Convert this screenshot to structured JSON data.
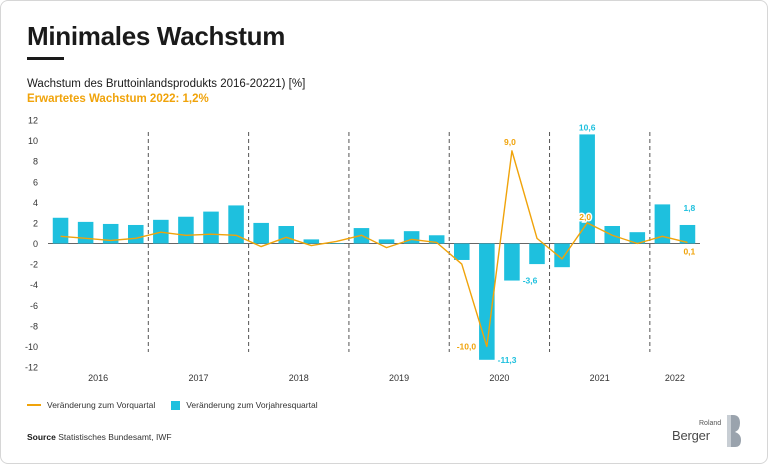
{
  "header": {
    "title": "Minimales Wachstum",
    "subtitle": "Wachstum des Bruttoinlandsprodukts 2016-20221) [%]",
    "subtitle2": "Erwartetes Wachstum 2022: 1,2%"
  },
  "chart_data": {
    "type": "bar",
    "title": "Wachstum des Bruttoinlandsprodukts 2016-20221) [%]",
    "ylim": [
      -12,
      12
    ],
    "yticks": [
      12,
      10,
      8,
      6,
      4,
      2,
      0,
      -2,
      -4,
      -6,
      -8,
      -10,
      -12
    ],
    "year_labels": [
      "2016",
      "2017",
      "2018",
      "2019",
      "2020",
      "2021",
      "2022"
    ],
    "quarters_per_year": [
      4,
      4,
      4,
      4,
      4,
      4,
      2
    ],
    "series": [
      {
        "name": "Veränderung zum Vorjahresquartal",
        "type": "bar",
        "values": [
          2.5,
          2.1,
          1.9,
          1.8,
          2.3,
          2.6,
          3.1,
          3.7,
          2.0,
          1.7,
          0.4,
          0.0,
          1.5,
          0.4,
          1.2,
          0.8,
          -1.6,
          -11.3,
          -3.6,
          -2.0,
          -2.3,
          10.6,
          1.7,
          1.1,
          3.8,
          1.8
        ]
      },
      {
        "name": "Veränderung zum Vorquartal",
        "type": "line",
        "values": [
          0.7,
          0.5,
          0.3,
          0.5,
          1.1,
          0.8,
          0.9,
          0.8,
          -0.3,
          0.6,
          -0.2,
          0.2,
          0.8,
          -0.4,
          0.4,
          0.1,
          -2.0,
          -10.0,
          9.0,
          0.5,
          -1.5,
          2.0,
          0.8,
          0.0,
          0.7,
          0.1
        ]
      }
    ],
    "annotations": [
      {
        "series": "line",
        "index": 17,
        "text": "-10,0"
      },
      {
        "series": "bar",
        "index": 17,
        "text": "-11,3"
      },
      {
        "series": "line",
        "index": 18,
        "text": "9,0"
      },
      {
        "series": "bar",
        "index": 18,
        "text": "-3,6"
      },
      {
        "series": "bar",
        "index": 21,
        "text": "10,6"
      },
      {
        "series": "line",
        "index": 21,
        "text": "2,0"
      },
      {
        "series": "bar",
        "index": 25,
        "text": "1,8"
      },
      {
        "series": "line",
        "index": 25,
        "text": "0,1"
      }
    ],
    "colors": {
      "bar": "#1ec0de",
      "line": "#f0a30a",
      "grid": "#555555"
    }
  },
  "legend": {
    "line_label": "Veränderung zum Vorquartal",
    "bar_label": "Veränderung zum Vorjahresquartal"
  },
  "footer": {
    "source_bold": "Source",
    "source_text": "Statistisches Bundesamt, IWF",
    "logo_top": "Roland",
    "logo_main": "Berger"
  }
}
